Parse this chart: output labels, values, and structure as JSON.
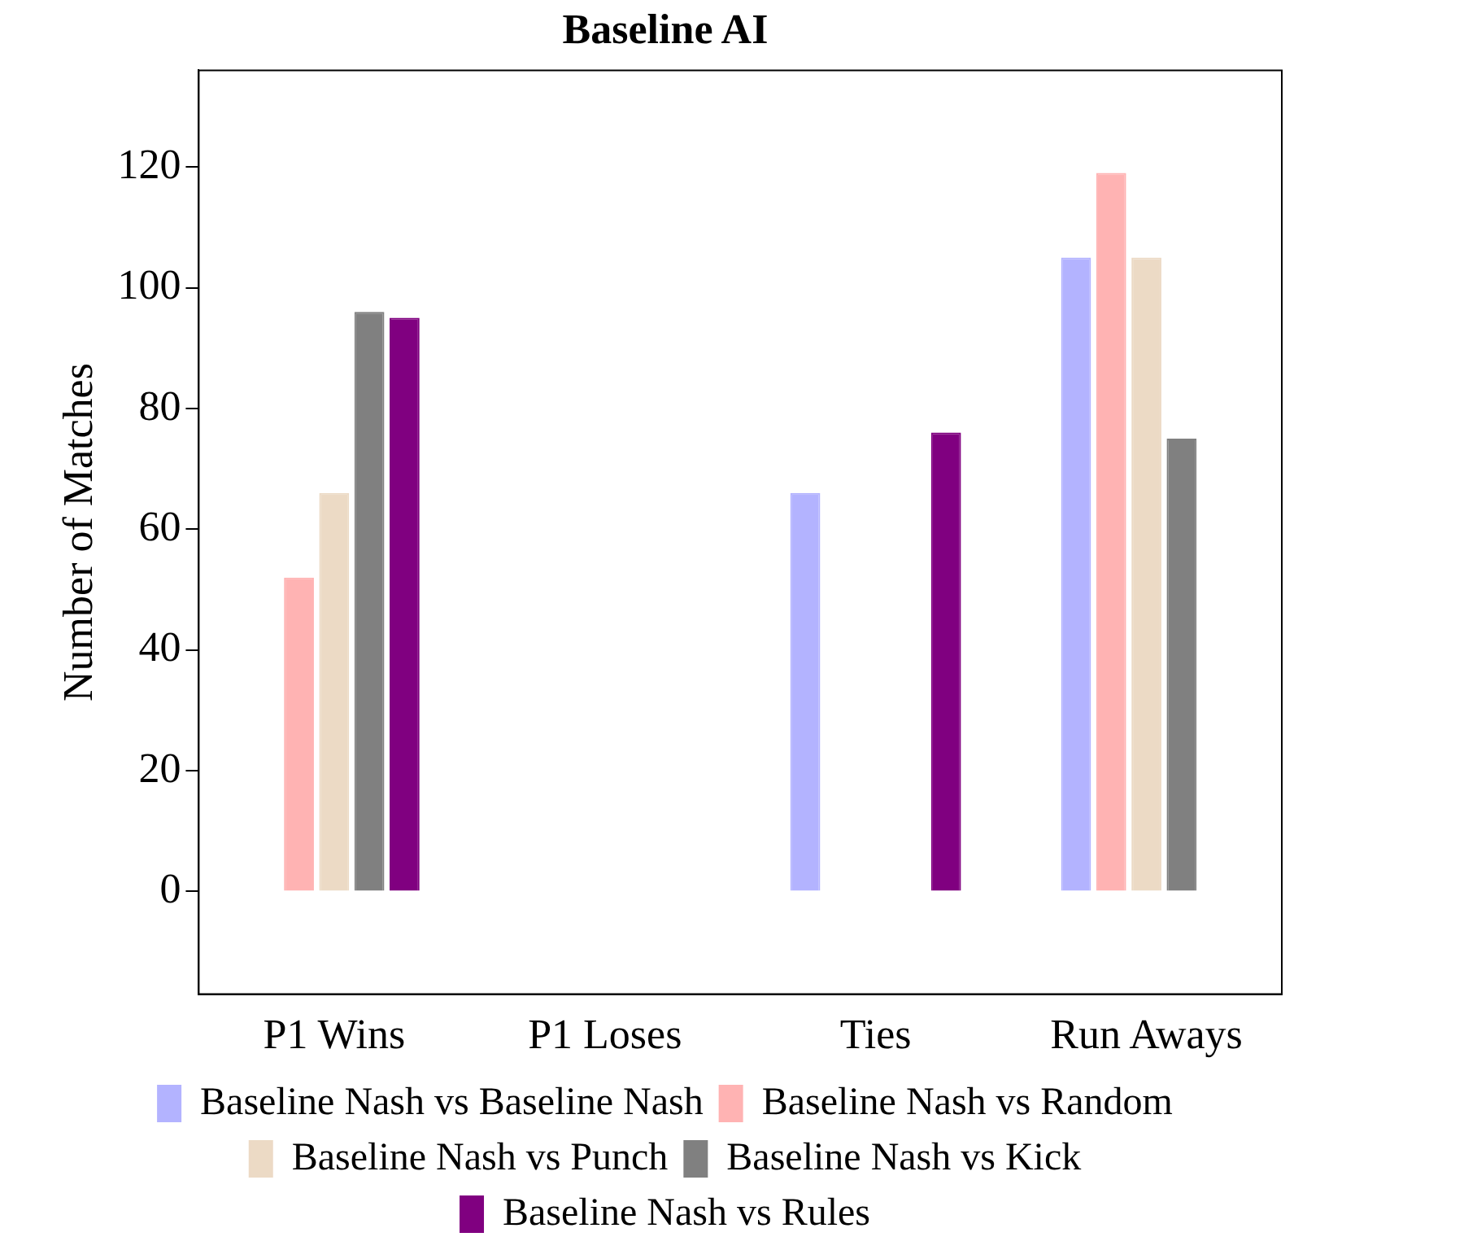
{
  "chart_data": {
    "type": "bar",
    "title": "Baseline AI",
    "ylabel": "Number of Matches",
    "categories": [
      "P1 Wins",
      "P1 Loses",
      "Ties",
      "Run Aways"
    ],
    "series": [
      {
        "name": "Baseline Nash vs Baseline Nash",
        "color": "#b3b3ff",
        "values": [
          0,
          0,
          66,
          105
        ]
      },
      {
        "name": "Baseline Nash vs Random",
        "color": "#ffb3b3",
        "values": [
          52,
          0,
          0,
          119
        ]
      },
      {
        "name": "Baseline Nash vs Punch",
        "color": "#ecdac5",
        "values": [
          66,
          0,
          0,
          105
        ]
      },
      {
        "name": "Baseline Nash vs Kick",
        "color": "#808080",
        "values": [
          96,
          0,
          0,
          75
        ]
      },
      {
        "name": "Baseline Nash vs Rules",
        "color": "#800080",
        "values": [
          95,
          0,
          76,
          0
        ]
      }
    ],
    "ylim": [
      -17,
      136
    ],
    "yticks": [
      0,
      20,
      40,
      60,
      80,
      100,
      120
    ],
    "grid": false,
    "legend": "bottom"
  }
}
